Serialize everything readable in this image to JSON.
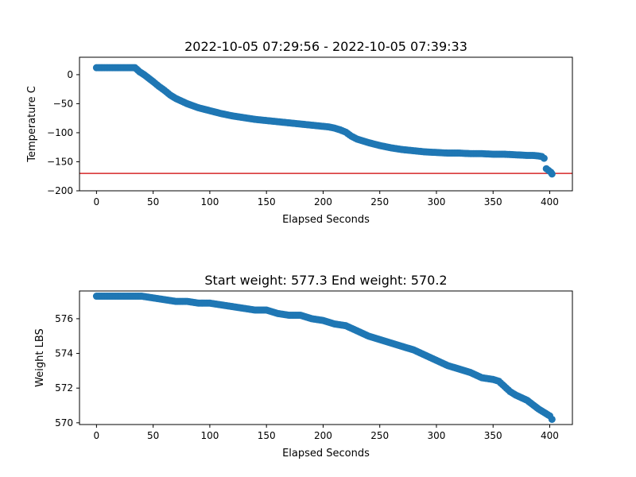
{
  "chart_data": [
    {
      "type": "scatter",
      "title": "2022-10-05 07:29:56 - 2022-10-05 07:39:33",
      "xlabel": "Elapsed Seconds",
      "ylabel": "Temperature C",
      "xlim": [
        -15,
        420
      ],
      "ylim": [
        -200,
        30
      ],
      "xticks": [
        0,
        50,
        100,
        150,
        200,
        250,
        300,
        350,
        400
      ],
      "yticks": [
        0,
        -50,
        -100,
        -150,
        -200
      ],
      "grid": false,
      "marker_color": "#1f77b4",
      "reference_line": {
        "y": -170,
        "color": "#d62728"
      },
      "series": [
        {
          "x": [
            0,
            10,
            20,
            30,
            34,
            38,
            42,
            46,
            50,
            55,
            60,
            65,
            70,
            80,
            90,
            100,
            110,
            120,
            130,
            140,
            150,
            160,
            170,
            180,
            190,
            200,
            205,
            210,
            215,
            220,
            225,
            230,
            240,
            250,
            260,
            270,
            280,
            290,
            300,
            310,
            320,
            330,
            340,
            350,
            360,
            370,
            380,
            385,
            390,
            393,
            395,
            397,
            399,
            401,
            402
          ],
          "y": [
            12,
            12,
            12,
            12,
            12,
            5,
            0,
            -6,
            -12,
            -20,
            -27,
            -35,
            -41,
            -50,
            -57,
            -62,
            -67,
            -71,
            -74,
            -77,
            -79,
            -81,
            -83,
            -85,
            -87,
            -89,
            -90,
            -92,
            -95,
            -99,
            -106,
            -111,
            -117,
            -122,
            -126,
            -129,
            -131,
            -133,
            -134,
            -135,
            -135,
            -136,
            -136,
            -137,
            -137,
            -138,
            -139,
            -139,
            -140,
            -141,
            -144,
            -162,
            -165,
            -168,
            -171
          ]
        }
      ]
    },
    {
      "type": "scatter",
      "title": "Start weight: 577.3 End weight: 570.2",
      "xlabel": "Elapsed Seconds",
      "ylabel": "Weight LBS",
      "xlim": [
        -15,
        420
      ],
      "ylim": [
        569.9,
        577.6
      ],
      "xticks": [
        0,
        50,
        100,
        150,
        200,
        250,
        300,
        350,
        400
      ],
      "yticks": [
        570,
        572,
        574,
        576
      ],
      "grid": false,
      "marker_color": "#1f77b4",
      "series": [
        {
          "x": [
            0,
            10,
            20,
            30,
            40,
            50,
            60,
            70,
            80,
            90,
            100,
            110,
            120,
            130,
            140,
            150,
            160,
            170,
            180,
            190,
            200,
            210,
            220,
            230,
            240,
            250,
            260,
            270,
            280,
            290,
            300,
            310,
            320,
            330,
            340,
            350,
            355,
            360,
            365,
            370,
            380,
            390,
            395,
            400,
            402
          ],
          "y": [
            577.3,
            577.3,
            577.3,
            577.3,
            577.3,
            577.2,
            577.1,
            577.0,
            577.0,
            576.9,
            576.9,
            576.8,
            576.7,
            576.6,
            576.5,
            576.5,
            576.3,
            576.2,
            576.2,
            576.0,
            575.9,
            575.7,
            575.6,
            575.3,
            575.0,
            574.8,
            574.6,
            574.4,
            574.2,
            573.9,
            573.6,
            573.3,
            573.1,
            572.9,
            572.6,
            572.5,
            572.4,
            572.1,
            571.8,
            571.6,
            571.3,
            570.8,
            570.6,
            570.4,
            570.2
          ]
        }
      ]
    }
  ]
}
